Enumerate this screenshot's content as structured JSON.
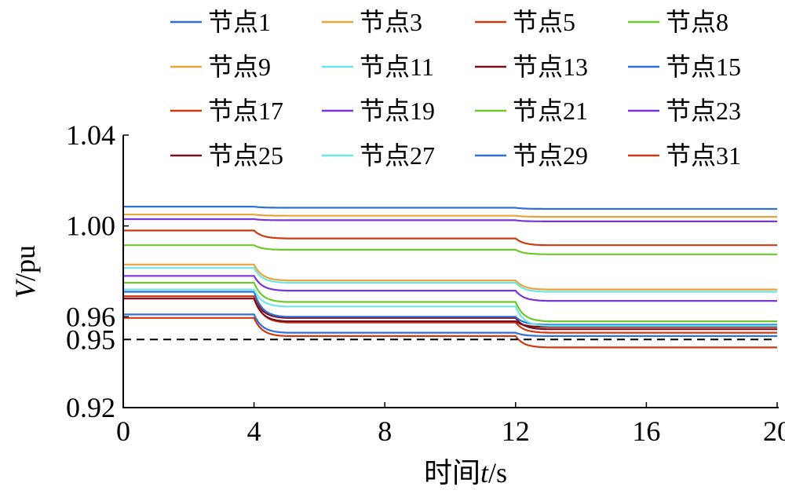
{
  "chart_data": {
    "type": "line",
    "xlabel_prefix": "时间",
    "xlabel_var": "t",
    "xlabel_unit": "/s",
    "ylabel_var": "V",
    "ylabel_unit": "/pu",
    "xlim": [
      0,
      20
    ],
    "ylim": [
      0.92,
      1.04
    ],
    "xticks": [
      0,
      4,
      8,
      12,
      16,
      20
    ],
    "xtick_labels": [
      "0",
      "4",
      "8",
      "12",
      "16",
      "20"
    ],
    "yticks": [
      0.92,
      0.95,
      0.96,
      1.0,
      1.04
    ],
    "ytick_labels": [
      "0.92",
      "0.95",
      "0.96",
      "1.00",
      "1.04"
    ],
    "reference_line": {
      "y": 0.95,
      "style": "dashed",
      "color": "#000000"
    },
    "legend_placement": "top, 4 columns",
    "series": [
      {
        "name": "节点1",
        "color": "#2f6fd8",
        "x": [
          0,
          4,
          5,
          12,
          13,
          20
        ],
        "values": [
          1.0085,
          1.0085,
          1.008,
          1.008,
          1.0075,
          1.0075
        ]
      },
      {
        "name": "节点3",
        "color": "#e8a33a",
        "x": [
          0,
          4,
          5,
          12,
          13,
          20
        ],
        "values": [
          1.005,
          1.005,
          1.0045,
          1.0045,
          1.004,
          1.004
        ]
      },
      {
        "name": "节点5",
        "color": "#cc3a14",
        "x": [
          0,
          4,
          5,
          12,
          13,
          20
        ],
        "values": [
          0.998,
          0.998,
          0.9945,
          0.9945,
          0.9915,
          0.9915
        ]
      },
      {
        "name": "节点8",
        "color": "#6cc92c",
        "x": [
          0,
          4,
          5,
          12,
          13,
          20
        ],
        "values": [
          0.9915,
          0.9915,
          0.9895,
          0.9895,
          0.9875,
          0.9875
        ]
      },
      {
        "name": "节点9",
        "color": "#e8a33a",
        "x": [
          0,
          4,
          5,
          12,
          13,
          20
        ],
        "values": [
          0.983,
          0.983,
          0.976,
          0.976,
          0.972,
          0.972
        ]
      },
      {
        "name": "节点11",
        "color": "#6ee6e6",
        "x": [
          0,
          4,
          5,
          12,
          13,
          20
        ],
        "values": [
          0.9815,
          0.9815,
          0.975,
          0.975,
          0.971,
          0.971
        ]
      },
      {
        "name": "节点13",
        "color": "#7a0f1a",
        "x": [
          0,
          4,
          5,
          12,
          13,
          20
        ],
        "values": [
          0.969,
          0.969,
          0.9595,
          0.9595,
          0.9545,
          0.9545
        ]
      },
      {
        "name": "节点15",
        "color": "#2f6fd8",
        "x": [
          0,
          4,
          5,
          12,
          13,
          20
        ],
        "values": [
          0.971,
          0.971,
          0.96,
          0.96,
          0.9565,
          0.9565
        ]
      },
      {
        "name": "节点17",
        "color": "#cc3a14",
        "x": [
          0,
          4,
          5,
          12,
          13,
          20
        ],
        "values": [
          0.969,
          0.969,
          0.9575,
          0.9575,
          0.953,
          0.953
        ]
      },
      {
        "name": "节点19",
        "color": "#7a35d8",
        "x": [
          0,
          4,
          5,
          12,
          13,
          20
        ],
        "values": [
          0.978,
          0.978,
          0.9715,
          0.9715,
          0.967,
          0.967
        ]
      },
      {
        "name": "节点21",
        "color": "#6cc92c",
        "x": [
          0,
          4,
          5,
          12,
          13,
          20
        ],
        "values": [
          0.975,
          0.975,
          0.9665,
          0.9665,
          0.958,
          0.958
        ]
      },
      {
        "name": "节点23",
        "color": "#7a35d8",
        "x": [
          0,
          4,
          5,
          12,
          13,
          20
        ],
        "values": [
          1.003,
          1.003,
          1.0025,
          1.0025,
          1.002,
          1.002
        ]
      },
      {
        "name": "节点25",
        "color": "#7a0f1a",
        "x": [
          0,
          4,
          5,
          12,
          13,
          20
        ],
        "values": [
          0.968,
          0.968,
          0.958,
          0.958,
          0.9555,
          0.9555
        ]
      },
      {
        "name": "节点27",
        "color": "#6ee6e6",
        "x": [
          0,
          4,
          5,
          12,
          13,
          20
        ],
        "values": [
          0.972,
          0.972,
          0.9645,
          0.9645,
          0.956,
          0.956
        ]
      },
      {
        "name": "节点29",
        "color": "#2f6fd8",
        "x": [
          0,
          4,
          5,
          12,
          13,
          20
        ],
        "values": [
          0.961,
          0.961,
          0.953,
          0.953,
          0.9515,
          0.9515
        ]
      },
      {
        "name": "节点31",
        "color": "#cc3a14",
        "x": [
          0,
          4,
          5,
          12,
          13,
          20
        ],
        "values": [
          0.9595,
          0.9595,
          0.9515,
          0.9515,
          0.9465,
          0.9465
        ]
      }
    ]
  }
}
